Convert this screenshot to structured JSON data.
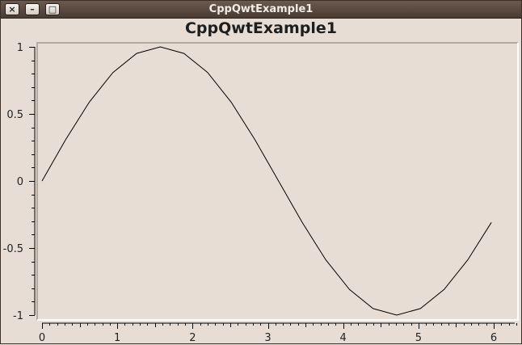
{
  "window": {
    "title": "CppQwtExample1",
    "buttons": {
      "close": "×",
      "minimize": "–",
      "maximize": "□"
    }
  },
  "chart_data": {
    "type": "line",
    "title": "CppQwtExample1",
    "xlabel": "",
    "ylabel": "",
    "xlim": [
      0,
      6.3
    ],
    "ylim": [
      -1,
      1
    ],
    "grid": false,
    "x_ticks": [
      0,
      1,
      2,
      3,
      4,
      5,
      6
    ],
    "x_tick_labels": [
      "0",
      "1",
      "2",
      "3",
      "4",
      "5",
      "6"
    ],
    "y_ticks": [
      -1,
      -0.5,
      0,
      0.5,
      1
    ],
    "y_tick_labels": [
      "-1",
      "-0.5",
      "0",
      "0.5",
      "1"
    ],
    "series": [
      {
        "color": "#000000",
        "x": [
          0,
          0.314,
          0.628,
          0.942,
          1.257,
          1.571,
          1.885,
          2.199,
          2.513,
          2.827,
          3.142,
          3.456,
          3.77,
          4.084,
          4.398,
          4.712,
          5.027,
          5.341,
          5.655,
          5.969
        ],
        "y": [
          0,
          0.309,
          0.588,
          0.809,
          0.951,
          1.0,
          0.951,
          0.809,
          0.588,
          0.309,
          0.0,
          -0.309,
          -0.588,
          -0.809,
          -0.951,
          -1.0,
          -0.951,
          -0.809,
          -0.588,
          -0.309
        ]
      }
    ]
  }
}
